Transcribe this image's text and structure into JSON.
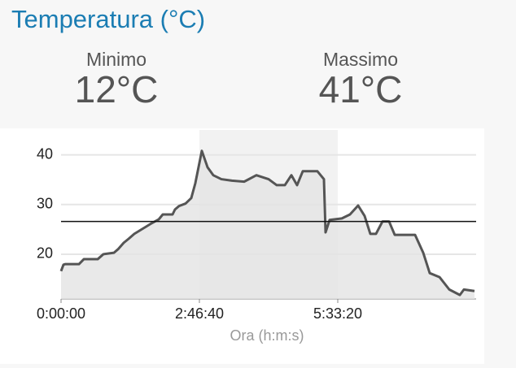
{
  "header": {
    "title": "Temperatura (°C)"
  },
  "stats": [
    {
      "label": "Minimo",
      "value": "12°C"
    },
    {
      "label": "Massimo",
      "value": "41°C"
    }
  ],
  "chart_data": {
    "type": "line",
    "x_label": "Ora (h:m:s)",
    "x": [
      0,
      176,
      294,
      1294,
      1647,
      2647,
      3059,
      3824,
      4118,
      4529,
      4882,
      5294,
      5882,
      6471,
      7059,
      7353,
      8059,
      8235,
      8529,
      9000,
      9412,
      9706,
      10176,
      10588,
      11000,
      11588,
      12353,
      13235,
      14118,
      15000,
      15588,
      16176,
      16647,
      17059,
      17471,
      18529,
      19000,
      19118,
      19412,
      20294,
      20882,
      21471,
      21941,
      22353,
      22765,
      23235,
      23706,
      24118,
      25588,
      26176,
      26647,
      27353,
      28059,
      28824,
      29118,
      29882
    ],
    "y": [
      16.6,
      17.9,
      18,
      18,
      19,
      19,
      20,
      20.3,
      21,
      22.3,
      23.1,
      24.1,
      25.1,
      26.1,
      27,
      28,
      28,
      29,
      29.7,
      30.2,
      31.3,
      34.3,
      40.8,
      37.5,
      35.9,
      35.1,
      34.8,
      34.6,
      35.9,
      35.1,
      33.9,
      33.9,
      35.9,
      33.9,
      36.7,
      36.7,
      35.1,
      24.4,
      26.9,
      27.2,
      28,
      29.8,
      27.7,
      24.1,
      24.1,
      26.6,
      26.6,
      23.9,
      23.9,
      20.3,
      16.2,
      15.4,
      12.9,
      11.8,
      12.9,
      12.6
    ],
    "color": "#555555",
    "fill": "#e3e3e3",
    "reference_line": 26.6,
    "xlim": [
      0,
      30000
    ],
    "ylim": [
      11,
      45
    ],
    "xticks": [
      {
        "value": 0,
        "label": "0:00:00"
      },
      {
        "value": 10000,
        "label": "2:46:40"
      },
      {
        "value": 20000,
        "label": "5:33:20"
      }
    ],
    "yticks": [
      20,
      30,
      40
    ],
    "grid": true
  }
}
